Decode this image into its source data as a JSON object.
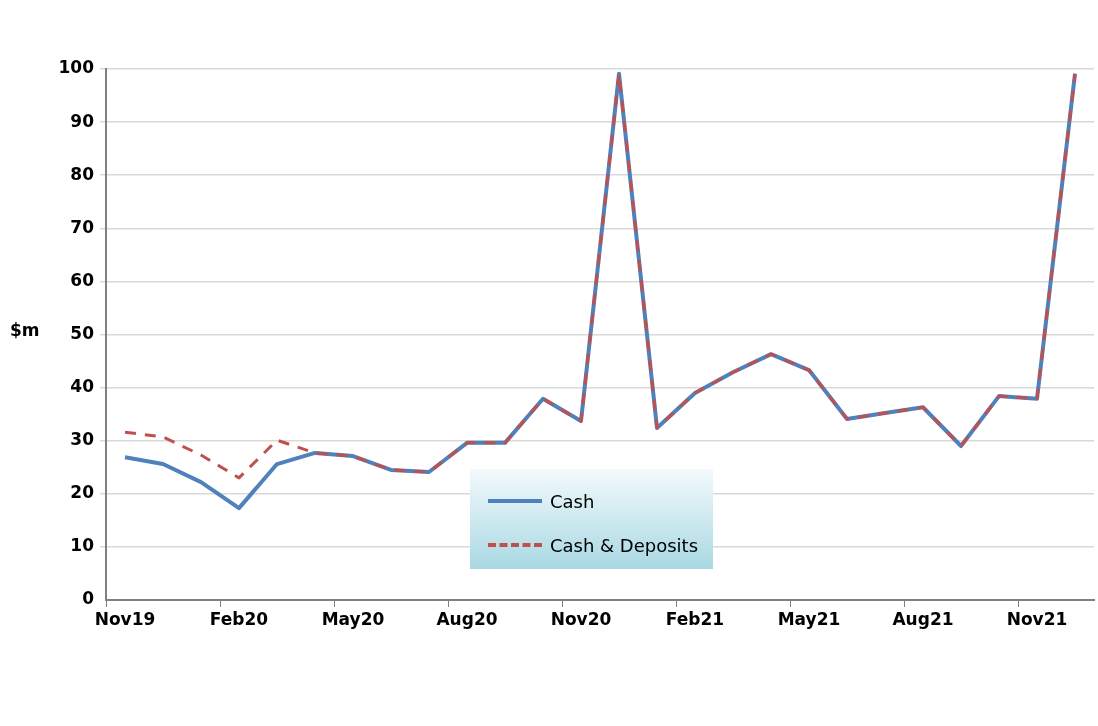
{
  "chart_data": {
    "type": "line",
    "ylabel": "$m",
    "categories": [
      "Nov19",
      null,
      null,
      "Feb20",
      null,
      null,
      "May20",
      null,
      null,
      "Aug20",
      null,
      null,
      "Nov20",
      null,
      null,
      "Feb21",
      null,
      null,
      "May21",
      null,
      null,
      "Aug21",
      null,
      null,
      "Nov21",
      null
    ],
    "series": [
      {
        "name": "Cash",
        "color": "#4f81bd",
        "line_style": "solid",
        "values": [
          26.9,
          25.6,
          22.2,
          17.3,
          25.6,
          27.7,
          27.1,
          24.5,
          24.1,
          29.6,
          29.6,
          37.9,
          33.7,
          99.1,
          32.4,
          39.0,
          42.9,
          46.3,
          43.3,
          34.1,
          35.2,
          36.3,
          29.0,
          38.4,
          37.9,
          99.1
        ]
      },
      {
        "name": "Cash & Deposits",
        "color": "#c0504d",
        "line_style": "dashed",
        "values": [
          31.6,
          30.7,
          27.3,
          23.0,
          30.1,
          27.7,
          27.1,
          24.5,
          24.1,
          29.6,
          29.6,
          37.9,
          33.7,
          99.1,
          32.4,
          39.0,
          42.9,
          46.3,
          43.3,
          34.1,
          35.2,
          36.3,
          29.0,
          38.4,
          37.9,
          99.1
        ]
      }
    ],
    "ylim": [
      0,
      100
    ],
    "yticks": [
      0,
      10,
      20,
      30,
      40,
      50,
      60,
      70,
      80,
      90,
      100
    ],
    "grid": "y",
    "legend": "bottom",
    "marker": "none"
  }
}
